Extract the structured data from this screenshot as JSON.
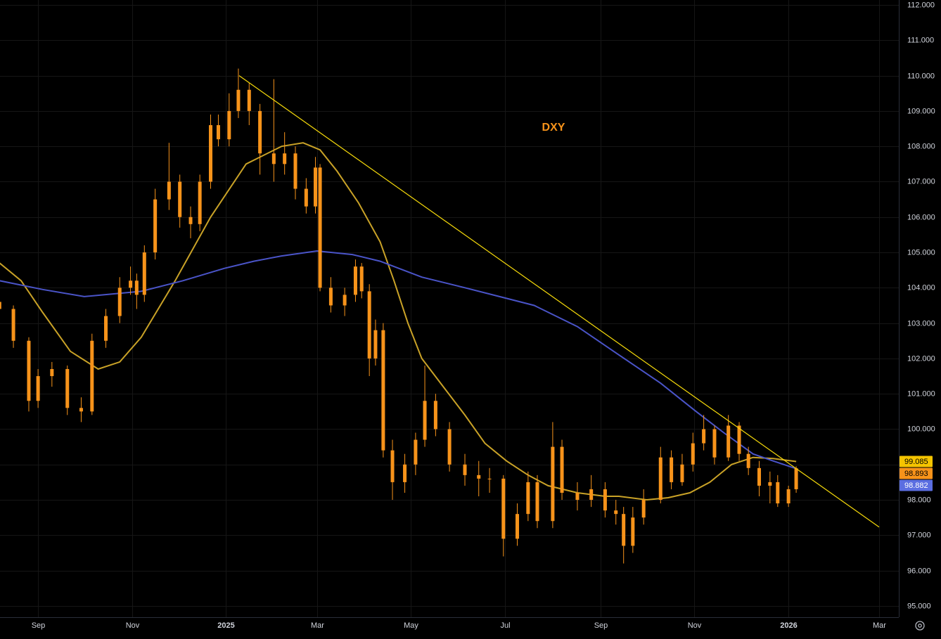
{
  "chart_data": {
    "type": "candlestick",
    "title": "DXY",
    "color": "#f7931a",
    "grid": true,
    "xlim": [
      6.3,
      589.6
    ],
    "ylim": [
      94.68,
      112.14
    ],
    "xticks": [
      {
        "value": 31,
        "label": "Sep"
      },
      {
        "value": 92,
        "label": "Nov"
      },
      {
        "value": 153,
        "label": "2025"
      },
      {
        "value": 212,
        "label": "Mar"
      },
      {
        "value": 273,
        "label": "May"
      },
      {
        "value": 334,
        "label": "Jul"
      },
      {
        "value": 396,
        "label": "Sep"
      },
      {
        "value": 457,
        "label": "Nov"
      },
      {
        "value": 518,
        "label": "2026"
      },
      {
        "value": 577,
        "label": "Mar"
      }
    ],
    "yticks": [
      {
        "value": 95,
        "label": "95.000"
      },
      {
        "value": 96,
        "label": "96.000"
      },
      {
        "value": 97,
        "label": "97.000"
      },
      {
        "value": 98,
        "label": "98.000"
      },
      {
        "value": 99,
        "label": "99.000"
      },
      {
        "value": 100,
        "label": "100.000"
      },
      {
        "value": 101,
        "label": "101.000"
      },
      {
        "value": 102,
        "label": "102.000"
      },
      {
        "value": 103,
        "label": "103.000"
      },
      {
        "value": 104,
        "label": "104.000"
      },
      {
        "value": 105,
        "label": "105.000"
      },
      {
        "value": 106,
        "label": "106.000"
      },
      {
        "value": 107,
        "label": "107.000"
      },
      {
        "value": 108,
        "label": "108.000"
      },
      {
        "value": 109,
        "label": "109.000"
      },
      {
        "value": 110,
        "label": "110.000"
      },
      {
        "value": 111,
        "label": "111.000"
      },
      {
        "value": 112,
        "label": "112.000"
      }
    ],
    "x": [
      6,
      15,
      25,
      31,
      40,
      50,
      59,
      66,
      75,
      84,
      91,
      95,
      100,
      107,
      116,
      123,
      130,
      136,
      143,
      148,
      155,
      161,
      168,
      175,
      184,
      191,
      198,
      205,
      211,
      214,
      221,
      230,
      237,
      241,
      246,
      250,
      255,
      261,
      269,
      276,
      282,
      289,
      298,
      308,
      317,
      324,
      333,
      342,
      349,
      355,
      365,
      371,
      381,
      390,
      399,
      406,
      411,
      417,
      424,
      435,
      442,
      449,
      456,
      463,
      470,
      479,
      486,
      492,
      499,
      506,
      511,
      518,
      523
    ],
    "ohlc": [
      [
        103.6,
        103.8,
        103.1,
        103.4
      ],
      [
        103.4,
        103.5,
        102.3,
        102.5
      ],
      [
        102.5,
        102.6,
        100.5,
        100.8
      ],
      [
        100.8,
        101.7,
        100.6,
        101.5
      ],
      [
        101.5,
        101.9,
        101.2,
        101.7
      ],
      [
        101.7,
        101.8,
        100.4,
        100.6
      ],
      [
        100.6,
        100.9,
        100.2,
        100.5
      ],
      [
        100.5,
        102.7,
        100.4,
        102.5
      ],
      [
        102.5,
        103.4,
        102.3,
        103.2
      ],
      [
        103.2,
        104.3,
        103.0,
        104.0
      ],
      [
        104.0,
        104.6,
        103.8,
        104.2
      ],
      [
        104.2,
        104.4,
        103.4,
        103.8
      ],
      [
        103.8,
        105.2,
        103.6,
        105.0
      ],
      [
        105.0,
        106.8,
        104.8,
        106.5
      ],
      [
        106.5,
        108.1,
        106.2,
        107.0
      ],
      [
        107.0,
        107.2,
        105.7,
        106.0
      ],
      [
        106.0,
        106.3,
        105.4,
        105.8
      ],
      [
        105.8,
        107.2,
        105.6,
        107.0
      ],
      [
        107.0,
        108.9,
        106.8,
        108.6
      ],
      [
        108.6,
        108.9,
        108.0,
        108.2
      ],
      [
        108.2,
        109.5,
        108.0,
        109.0
      ],
      [
        109.0,
        110.2,
        108.8,
        109.6
      ],
      [
        109.6,
        109.8,
        108.6,
        109.0
      ],
      [
        109.0,
        109.2,
        107.2,
        107.8
      ],
      [
        107.8,
        109.9,
        107.0,
        107.5
      ],
      [
        107.5,
        108.4,
        107.2,
        107.8
      ],
      [
        107.8,
        108.0,
        106.5,
        106.8
      ],
      [
        106.8,
        107.1,
        106.1,
        106.3
      ],
      [
        106.3,
        107.7,
        106.1,
        107.4
      ],
      [
        107.4,
        107.5,
        103.9,
        104.0
      ],
      [
        104.0,
        104.3,
        103.3,
        103.5
      ],
      [
        103.5,
        104.0,
        103.2,
        103.8
      ],
      [
        103.8,
        104.8,
        103.6,
        104.6
      ],
      [
        104.6,
        104.7,
        103.7,
        103.9
      ],
      [
        103.9,
        104.1,
        101.5,
        102.0
      ],
      [
        102.0,
        103.1,
        101.8,
        102.8
      ],
      [
        102.8,
        103.0,
        99.2,
        99.4
      ],
      [
        99.4,
        99.7,
        98.0,
        98.5
      ],
      [
        98.5,
        99.3,
        98.2,
        99.0
      ],
      [
        99.0,
        99.9,
        98.7,
        99.7
      ],
      [
        99.7,
        101.8,
        99.5,
        100.8
      ],
      [
        100.8,
        101.0,
        99.8,
        100.0
      ],
      [
        100.0,
        100.2,
        98.8,
        99.0
      ],
      [
        99.0,
        99.3,
        98.4,
        98.7
      ],
      [
        98.7,
        99.1,
        98.1,
        98.6
      ],
      [
        98.6,
        98.9,
        98.2,
        98.6
      ],
      [
        98.6,
        98.7,
        96.4,
        96.9
      ],
      [
        96.9,
        97.9,
        96.7,
        97.6
      ],
      [
        97.6,
        98.8,
        97.4,
        98.5
      ],
      [
        98.5,
        98.7,
        97.2,
        97.4
      ],
      [
        97.4,
        100.2,
        97.2,
        99.5
      ],
      [
        99.5,
        99.7,
        98.0,
        98.2
      ],
      [
        98.2,
        98.5,
        97.7,
        98.0
      ],
      [
        98.0,
        98.7,
        97.8,
        98.3
      ],
      [
        98.3,
        98.5,
        97.5,
        97.7
      ],
      [
        97.7,
        98.0,
        97.3,
        97.6
      ],
      [
        97.6,
        97.8,
        96.2,
        96.7
      ],
      [
        96.7,
        97.8,
        96.5,
        97.5
      ],
      [
        97.5,
        98.3,
        97.3,
        98.0
      ],
      [
        98.0,
        99.5,
        97.9,
        99.2
      ],
      [
        99.2,
        99.4,
        98.3,
        98.5
      ],
      [
        98.5,
        99.3,
        98.4,
        99.0
      ],
      [
        99.0,
        99.9,
        98.8,
        99.6
      ],
      [
        99.6,
        100.4,
        99.4,
        100.0
      ],
      [
        100.0,
        100.1,
        99.0,
        99.2
      ],
      [
        99.2,
        100.4,
        99.1,
        100.1
      ],
      [
        100.1,
        100.2,
        99.1,
        99.3
      ],
      [
        99.3,
        99.5,
        98.7,
        98.9
      ],
      [
        98.9,
        99.1,
        98.1,
        98.4
      ],
      [
        98.4,
        98.8,
        97.9,
        98.5
      ],
      [
        98.5,
        98.7,
        97.8,
        97.9
      ],
      [
        97.9,
        98.4,
        97.8,
        98.3
      ],
      [
        98.3,
        98.95,
        98.2,
        98.893
      ]
    ],
    "overlays": [
      {
        "color": "#c9a227",
        "label_color": "#f5c400",
        "x": [
          6,
          20,
          34,
          52,
          70,
          84,
          98,
          120,
          143,
          166,
          189,
          203,
          214,
          225,
          239,
          253,
          262,
          271,
          280,
          294,
          308,
          321,
          335,
          349,
          362,
          381,
          399,
          408,
          426,
          440,
          454,
          467,
          481,
          495,
          508,
          523
        ],
        "values": [
          104.7,
          104.2,
          103.3,
          102.2,
          101.7,
          101.9,
          102.6,
          104.2,
          106.0,
          107.5,
          108.0,
          108.1,
          107.9,
          107.3,
          106.4,
          105.3,
          104.2,
          103.0,
          102.0,
          101.2,
          100.4,
          99.6,
          99.1,
          98.7,
          98.4,
          98.2,
          98.1,
          98.1,
          98.0,
          98.06,
          98.2,
          98.5,
          99.0,
          99.2,
          99.17,
          99.085
        ]
      },
      {
        "color": "#4a54c8",
        "label_color": "#5b6ee1",
        "x": [
          6,
          34,
          61,
          98,
          125,
          152,
          171,
          189,
          212,
          235,
          253,
          280,
          308,
          326,
          353,
          381,
          408,
          435,
          458,
          476,
          495,
          508,
          523
        ],
        "values": [
          104.2,
          103.95,
          103.75,
          103.9,
          104.2,
          104.55,
          104.75,
          104.9,
          105.04,
          104.94,
          104.75,
          104.3,
          104.0,
          103.8,
          103.5,
          102.9,
          102.1,
          101.3,
          100.5,
          99.9,
          99.3,
          99.1,
          98.882
        ]
      }
    ],
    "trendline": {
      "color": "#f5d90a",
      "x": [
        161.5,
        576.8
      ],
      "values": [
        110.0,
        97.23
      ]
    }
  }
}
